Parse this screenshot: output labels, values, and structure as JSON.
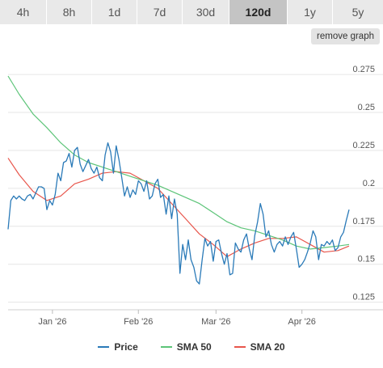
{
  "range_tabs": [
    {
      "label": "4h",
      "active": false
    },
    {
      "label": "8h",
      "active": false
    },
    {
      "label": "1d",
      "active": false
    },
    {
      "label": "7d",
      "active": false
    },
    {
      "label": "30d",
      "active": false
    },
    {
      "label": "120d",
      "active": true
    },
    {
      "label": "1y",
      "active": false
    },
    {
      "label": "5y",
      "active": false
    }
  ],
  "remove_graph_label": "remove graph",
  "colors": {
    "price": "#2a7ab8",
    "sma50": "#5cc478",
    "sma20": "#e8564c",
    "grid": "#e6e6e6"
  },
  "chart_data": {
    "type": "line",
    "title": "",
    "xlabel": "",
    "ylabel": "",
    "x_range": [
      "2025-12-16",
      "2026-04-18"
    ],
    "ylim": [
      0.12,
      0.29
    ],
    "y_ticks": [
      0.125,
      0.15,
      0.175,
      0.2,
      0.225,
      0.25,
      0.275
    ],
    "y_tick_labels": [
      "0.125",
      "0.15",
      "0.175",
      "0.2",
      "0.225",
      "0.25",
      "0.275"
    ],
    "x_ticks": [
      {
        "date": "2026-01-01",
        "label": "Jan '26"
      },
      {
        "date": "2026-02-01",
        "label": "Feb '26"
      },
      {
        "date": "2026-03-01",
        "label": "Mar '26"
      },
      {
        "date": "2026-04-01",
        "label": "Apr '26"
      }
    ],
    "legend": {
      "placement": "bottom"
    },
    "series": [
      {
        "name": "Price",
        "points": [
          [
            "2025-12-16",
            0.173
          ],
          [
            "2025-12-17",
            0.192
          ],
          [
            "2025-12-18",
            0.195
          ],
          [
            "2025-12-19",
            0.193
          ],
          [
            "2025-12-20",
            0.195
          ],
          [
            "2025-12-21",
            0.193
          ],
          [
            "2025-12-22",
            0.192
          ],
          [
            "2025-12-23",
            0.195
          ],
          [
            "2025-12-24",
            0.196
          ],
          [
            "2025-12-25",
            0.193
          ],
          [
            "2025-12-26",
            0.197
          ],
          [
            "2025-12-27",
            0.201
          ],
          [
            "2025-12-28",
            0.201
          ],
          [
            "2025-12-29",
            0.2
          ],
          [
            "2025-12-30",
            0.186
          ],
          [
            "2025-12-31",
            0.192
          ],
          [
            "2026-01-01",
            0.189
          ],
          [
            "2026-01-02",
            0.196
          ],
          [
            "2026-01-03",
            0.21
          ],
          [
            "2026-01-04",
            0.205
          ],
          [
            "2026-01-05",
            0.217
          ],
          [
            "2026-01-06",
            0.218
          ],
          [
            "2026-01-07",
            0.223
          ],
          [
            "2026-01-08",
            0.214
          ],
          [
            "2026-01-09",
            0.225
          ],
          [
            "2026-01-10",
            0.227
          ],
          [
            "2026-01-11",
            0.216
          ],
          [
            "2026-01-12",
            0.211
          ],
          [
            "2026-01-13",
            0.215
          ],
          [
            "2026-01-14",
            0.219
          ],
          [
            "2026-01-15",
            0.213
          ],
          [
            "2026-01-16",
            0.21
          ],
          [
            "2026-01-17",
            0.214
          ],
          [
            "2026-01-18",
            0.207
          ],
          [
            "2026-01-19",
            0.205
          ],
          [
            "2026-01-20",
            0.222
          ],
          [
            "2026-01-21",
            0.23
          ],
          [
            "2026-01-22",
            0.224
          ],
          [
            "2026-01-23",
            0.21
          ],
          [
            "2026-01-24",
            0.228
          ],
          [
            "2026-01-25",
            0.219
          ],
          [
            "2026-01-26",
            0.207
          ],
          [
            "2026-01-27",
            0.195
          ],
          [
            "2026-01-28",
            0.201
          ],
          [
            "2026-01-29",
            0.194
          ],
          [
            "2026-01-30",
            0.199
          ],
          [
            "2026-01-31",
            0.196
          ],
          [
            "2026-02-01",
            0.205
          ],
          [
            "2026-02-02",
            0.203
          ],
          [
            "2026-02-03",
            0.198
          ],
          [
            "2026-02-04",
            0.205
          ],
          [
            "2026-02-05",
            0.193
          ],
          [
            "2026-02-06",
            0.195
          ],
          [
            "2026-02-07",
            0.203
          ],
          [
            "2026-02-08",
            0.206
          ],
          [
            "2026-02-09",
            0.194
          ],
          [
            "2026-02-10",
            0.196
          ],
          [
            "2026-02-11",
            0.183
          ],
          [
            "2026-02-12",
            0.195
          ],
          [
            "2026-02-13",
            0.18
          ],
          [
            "2026-02-14",
            0.193
          ],
          [
            "2026-02-15",
            0.183
          ],
          [
            "2026-02-16",
            0.144
          ],
          [
            "2026-02-17",
            0.163
          ],
          [
            "2026-02-18",
            0.153
          ],
          [
            "2026-02-19",
            0.166
          ],
          [
            "2026-02-20",
            0.153
          ],
          [
            "2026-02-21",
            0.148
          ],
          [
            "2026-02-22",
            0.139
          ],
          [
            "2026-02-23",
            0.137
          ],
          [
            "2026-02-24",
            0.153
          ],
          [
            "2026-02-25",
            0.167
          ],
          [
            "2026-02-26",
            0.162
          ],
          [
            "2026-02-27",
            0.165
          ],
          [
            "2026-02-28",
            0.152
          ],
          [
            "2026-03-01",
            0.165
          ],
          [
            "2026-03-02",
            0.166
          ],
          [
            "2026-03-03",
            0.157
          ],
          [
            "2026-03-04",
            0.15
          ],
          [
            "2026-03-05",
            0.157
          ],
          [
            "2026-03-06",
            0.143
          ],
          [
            "2026-03-07",
            0.144
          ],
          [
            "2026-03-08",
            0.164
          ],
          [
            "2026-03-09",
            0.16
          ],
          [
            "2026-03-10",
            0.158
          ],
          [
            "2026-03-11",
            0.166
          ],
          [
            "2026-03-12",
            0.17
          ],
          [
            "2026-03-13",
            0.16
          ],
          [
            "2026-03-14",
            0.153
          ],
          [
            "2026-03-15",
            0.169
          ],
          [
            "2026-03-16",
            0.178
          ],
          [
            "2026-03-17",
            0.19
          ],
          [
            "2026-03-18",
            0.183
          ],
          [
            "2026-03-19",
            0.168
          ],
          [
            "2026-03-20",
            0.172
          ],
          [
            "2026-03-21",
            0.163
          ],
          [
            "2026-03-22",
            0.158
          ],
          [
            "2026-03-23",
            0.163
          ],
          [
            "2026-03-24",
            0.165
          ],
          [
            "2026-03-25",
            0.162
          ],
          [
            "2026-03-26",
            0.168
          ],
          [
            "2026-03-27",
            0.163
          ],
          [
            "2026-03-28",
            0.168
          ],
          [
            "2026-03-29",
            0.171
          ],
          [
            "2026-03-30",
            0.16
          ],
          [
            "2026-03-31",
            0.148
          ],
          [
            "2026-04-01",
            0.15
          ],
          [
            "2026-04-02",
            0.153
          ],
          [
            "2026-04-03",
            0.158
          ],
          [
            "2026-04-04",
            0.164
          ],
          [
            "2026-04-05",
            0.172
          ],
          [
            "2026-04-06",
            0.168
          ],
          [
            "2026-04-07",
            0.153
          ],
          [
            "2026-04-08",
            0.163
          ],
          [
            "2026-04-09",
            0.162
          ],
          [
            "2026-04-10",
            0.165
          ],
          [
            "2026-04-11",
            0.163
          ],
          [
            "2026-04-12",
            0.166
          ],
          [
            "2026-04-13",
            0.159
          ],
          [
            "2026-04-14",
            0.161
          ],
          [
            "2026-04-15",
            0.168
          ],
          [
            "2026-04-16",
            0.171
          ],
          [
            "2026-04-17",
            0.179
          ],
          [
            "2026-04-18",
            0.186
          ]
        ]
      },
      {
        "name": "SMA 50",
        "points": [
          [
            "2025-12-16",
            0.274
          ],
          [
            "2025-12-20",
            0.262
          ],
          [
            "2025-12-25",
            0.249
          ],
          [
            "2025-12-30",
            0.24
          ],
          [
            "2026-01-04",
            0.23
          ],
          [
            "2026-01-09",
            0.222
          ],
          [
            "2026-01-14",
            0.217
          ],
          [
            "2026-01-19",
            0.214
          ],
          [
            "2026-01-24",
            0.211
          ],
          [
            "2026-01-29",
            0.208
          ],
          [
            "2026-02-03",
            0.205
          ],
          [
            "2026-02-08",
            0.202
          ],
          [
            "2026-02-13",
            0.198
          ],
          [
            "2026-02-18",
            0.194
          ],
          [
            "2026-02-23",
            0.19
          ],
          [
            "2026-02-28",
            0.184
          ],
          [
            "2026-03-05",
            0.178
          ],
          [
            "2026-03-10",
            0.174
          ],
          [
            "2026-03-15",
            0.172
          ],
          [
            "2026-03-20",
            0.169
          ],
          [
            "2026-03-25",
            0.166
          ],
          [
            "2026-03-30",
            0.162
          ],
          [
            "2026-04-04",
            0.16
          ],
          [
            "2026-04-09",
            0.161
          ],
          [
            "2026-04-14",
            0.162
          ],
          [
            "2026-04-18",
            0.163
          ]
        ]
      },
      {
        "name": "SMA 20",
        "points": [
          [
            "2025-12-16",
            0.22
          ],
          [
            "2025-12-20",
            0.209
          ],
          [
            "2025-12-25",
            0.198
          ],
          [
            "2025-12-30",
            0.192
          ],
          [
            "2026-01-04",
            0.195
          ],
          [
            "2026-01-09",
            0.203
          ],
          [
            "2026-01-14",
            0.206
          ],
          [
            "2026-01-19",
            0.21
          ],
          [
            "2026-01-24",
            0.211
          ],
          [
            "2026-01-29",
            0.21
          ],
          [
            "2026-02-03",
            0.205
          ],
          [
            "2026-02-08",
            0.2
          ],
          [
            "2026-02-13",
            0.19
          ],
          [
            "2026-02-18",
            0.18
          ],
          [
            "2026-02-23",
            0.17
          ],
          [
            "2026-02-28",
            0.163
          ],
          [
            "2026-03-05",
            0.155
          ],
          [
            "2026-03-10",
            0.16
          ],
          [
            "2026-03-15",
            0.164
          ],
          [
            "2026-03-20",
            0.167
          ],
          [
            "2026-03-25",
            0.167
          ],
          [
            "2026-03-30",
            0.168
          ],
          [
            "2026-04-04",
            0.163
          ],
          [
            "2026-04-09",
            0.158
          ],
          [
            "2026-04-14",
            0.159
          ],
          [
            "2026-04-18",
            0.162
          ]
        ]
      }
    ]
  }
}
